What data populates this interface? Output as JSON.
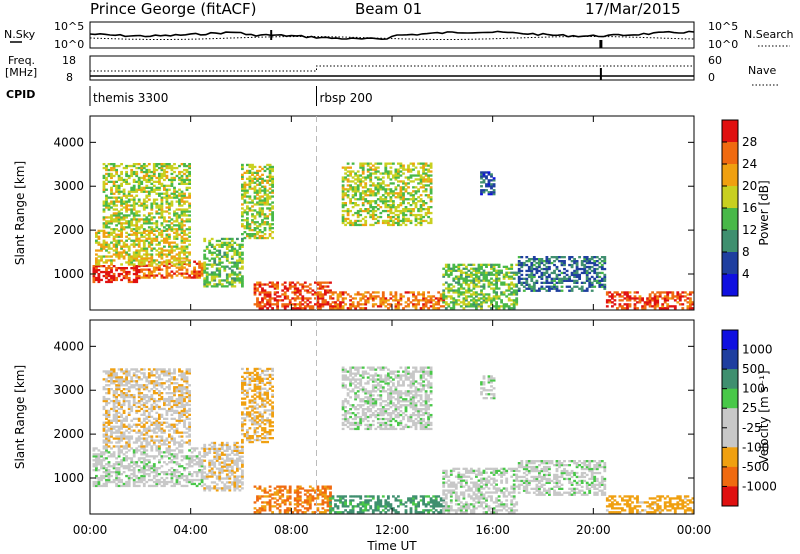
{
  "header": {
    "station": "Prince George (fitACF)",
    "beam": "Beam 01",
    "date": "17/Mar/2015"
  },
  "strip_labels": {
    "nsky": "N.Sky",
    "nsearch": "N.Search",
    "freq_line1": "Freq.",
    "freq_line2": "[MHz]",
    "nave": "Nave",
    "cpid": "CPID",
    "nsky_ticks": [
      "10^5",
      "10^0"
    ],
    "nsearch_ticks": [
      "10^5",
      "10^0"
    ],
    "freq_ticks": [
      "18",
      "8"
    ],
    "nave_ticks": [
      "60",
      "0"
    ]
  },
  "cpid_segments": [
    {
      "label": "themis 3300",
      "start_hour": 0
    },
    {
      "label": "rbsp 200",
      "start_hour": 9
    }
  ],
  "colors": {
    "power": [
      "#1010e0",
      "#1f3f9f",
      "#3f8f6f",
      "#48b848",
      "#c8d020",
      "#f0a010",
      "#f06a10",
      "#e01010"
    ],
    "velocity": [
      "#e01010",
      "#f06a10",
      "#f0a010",
      "#c8c8c8",
      "#c8c8c8",
      "#48c848",
      "#3f8f6f",
      "#1f3f9f",
      "#1010e0"
    ]
  },
  "chart_data": [
    {
      "type": "heatmap",
      "title": "",
      "ylabel": "Slant Range [km]",
      "xlabel": "Time UT",
      "xlim": [
        0,
        24
      ],
      "ylim": [
        180,
        4600
      ],
      "x_ticks": [
        "00:00",
        "04:00",
        "08:00",
        "12:00",
        "16:00",
        "20:00",
        "00:00"
      ],
      "y_ticks": [
        1000,
        2000,
        3000,
        4000
      ],
      "colorbar": {
        "label": "Power [dB]",
        "ticks": [
          "28",
          "24",
          "20",
          "16",
          "12",
          "8",
          "4"
        ],
        "range": [
          0,
          30
        ]
      },
      "regions": [
        {
          "hours": [
            0.1,
            2.0
          ],
          "range_km": [
            800,
            1200
          ],
          "value": 28
        },
        {
          "hours": [
            2.0,
            4.5
          ],
          "range_km": [
            900,
            1300
          ],
          "value": 24
        },
        {
          "hours": [
            0.2,
            4.0
          ],
          "range_km": [
            1200,
            2000
          ],
          "value": 18
        },
        {
          "hours": [
            0.5,
            4.0
          ],
          "range_km": [
            2000,
            3500
          ],
          "value": 16
        },
        {
          "hours": [
            4.5,
            6.0
          ],
          "range_km": [
            700,
            1800
          ],
          "value": 14
        },
        {
          "hours": [
            6.0,
            7.2
          ],
          "range_km": [
            1800,
            3500
          ],
          "value": 16
        },
        {
          "hours": [
            6.5,
            9.5
          ],
          "range_km": [
            200,
            800
          ],
          "value": 26
        },
        {
          "hours": [
            9.5,
            14.0
          ],
          "range_km": [
            200,
            600
          ],
          "value": 24
        },
        {
          "hours": [
            10.0,
            13.5
          ],
          "range_km": [
            2100,
            3500
          ],
          "value": 16
        },
        {
          "hours": [
            14.0,
            17.0
          ],
          "range_km": [
            200,
            1200
          ],
          "value": 14
        },
        {
          "hours": [
            15.5,
            16.0
          ],
          "range_km": [
            2800,
            3300
          ],
          "value": 6
        },
        {
          "hours": [
            17.0,
            20.5
          ],
          "range_km": [
            600,
            1400
          ],
          "value": 8
        },
        {
          "hours": [
            20.5,
            24.0
          ],
          "range_km": [
            200,
            600
          ],
          "value": 26
        }
      ]
    },
    {
      "type": "heatmap",
      "title": "",
      "ylabel": "Slant Range [km]",
      "xlabel": "Time UT",
      "xlim": [
        0,
        24
      ],
      "ylim": [
        180,
        4600
      ],
      "x_ticks": [
        "00:00",
        "04:00",
        "08:00",
        "12:00",
        "16:00",
        "20:00",
        "00:00"
      ],
      "y_ticks": [
        1000,
        2000,
        3000,
        4000
      ],
      "colorbar": {
        "label": "Velocity [m s⁻¹]",
        "ticks": [
          "1000",
          "500",
          "100",
          "25",
          "-25",
          "-100",
          "-500",
          "-1000"
        ],
        "range": [
          -1000,
          1000
        ]
      },
      "regions": [
        {
          "hours": [
            0.1,
            4.5
          ],
          "range_km": [
            800,
            1700
          ],
          "value": 0
        },
        {
          "hours": [
            0.5,
            4.0
          ],
          "range_km": [
            1700,
            3500
          ],
          "value": -80
        },
        {
          "hours": [
            4.5,
            6.0
          ],
          "range_km": [
            700,
            1800
          ],
          "value": -80
        },
        {
          "hours": [
            6.0,
            7.2
          ],
          "range_km": [
            1800,
            3500
          ],
          "value": -120
        },
        {
          "hours": [
            6.5,
            9.5
          ],
          "range_km": [
            200,
            800
          ],
          "value": -600
        },
        {
          "hours": [
            9.5,
            14.0
          ],
          "range_km": [
            200,
            600
          ],
          "value": 150
        },
        {
          "hours": [
            10.0,
            13.5
          ],
          "range_km": [
            2100,
            3500
          ],
          "value": 0
        },
        {
          "hours": [
            14.0,
            17.0
          ],
          "range_km": [
            200,
            1200
          ],
          "value": 0
        },
        {
          "hours": [
            15.5,
            16.0
          ],
          "range_km": [
            2800,
            3300
          ],
          "value": 0
        },
        {
          "hours": [
            17.0,
            20.5
          ],
          "range_km": [
            600,
            1400
          ],
          "value": 0
        },
        {
          "hours": [
            20.5,
            24.0
          ],
          "range_km": [
            200,
            600
          ],
          "value": -200
        }
      ]
    }
  ]
}
